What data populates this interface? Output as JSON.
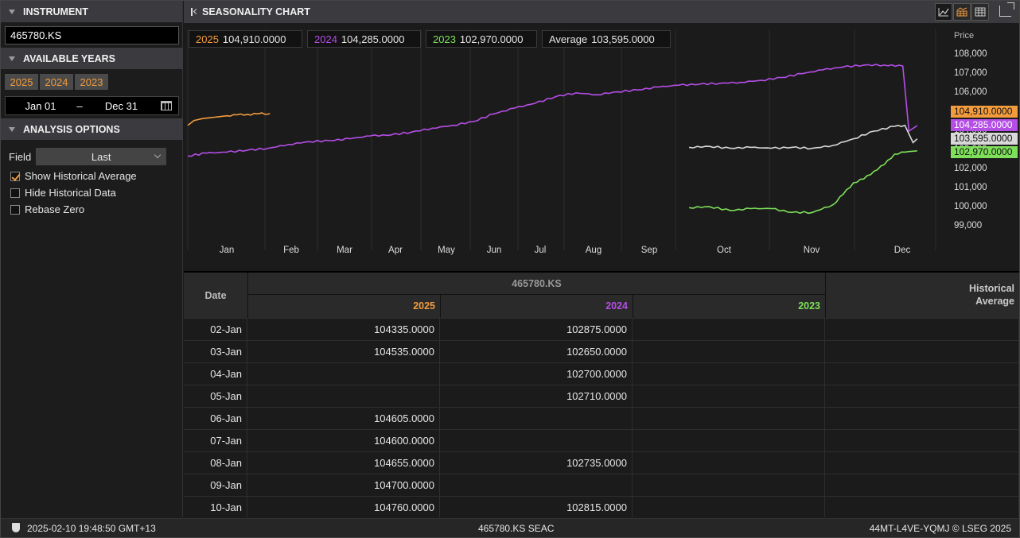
{
  "left_panel": {
    "instrument": {
      "header": "INSTRUMENT",
      "value": "465780.KS"
    },
    "available_years": {
      "header": "AVAILABLE YEARS",
      "years": [
        "2025",
        "2024",
        "2023"
      ]
    },
    "date_range": {
      "start": "Jan 01",
      "separator": "–",
      "end": "Dec 31"
    },
    "analysis_options": {
      "header": "ANALYSIS OPTIONS",
      "field_label": "Field",
      "field_value": "Last",
      "checkboxes": [
        {
          "label": "Show Historical Average",
          "checked": true
        },
        {
          "label": "Hide Historical Data",
          "checked": false
        },
        {
          "label": "Rebase Zero",
          "checked": false
        }
      ]
    }
  },
  "chart_header": {
    "title": "SEASONALITY CHART"
  },
  "colors": {
    "y2025": "#f39c3d",
    "y2024": "#b44ee6",
    "y2023": "#7ee05a",
    "average": "#d8d8d8"
  },
  "legend": [
    {
      "year": "2025",
      "value": "104,910.0000"
    },
    {
      "year": "2024",
      "value": "104,285.0000"
    },
    {
      "year": "2023",
      "value": "102,970.0000"
    },
    {
      "year": "Average",
      "value": "103,595.0000"
    }
  ],
  "price_tags": {
    "y2025": "104,910.0000",
    "y2024": "104,285.0000",
    "average": "103,595.0000",
    "y2023": "102,970.0000"
  },
  "chart_data": {
    "type": "line",
    "ylabel": "Price",
    "ylim": [
      98600,
      108400
    ],
    "yticks": [
      "108,000",
      "107,000",
      "106,000",
      "105,000",
      "104,000",
      "103,000",
      "102,000",
      "101,000",
      "100,000",
      "99,000"
    ],
    "xticks": [
      "Jan",
      "Feb",
      "Mar",
      "Apr",
      "May",
      "Jun",
      "Jul",
      "Aug",
      "Sep",
      "Oct",
      "Nov",
      "Dec"
    ],
    "series": [
      {
        "name": "2025",
        "x": [
          1,
          4,
          8,
          12,
          16,
          20,
          25,
          30,
          35,
          41
        ],
        "y": [
          104300,
          104550,
          104650,
          104700,
          104750,
          104800,
          104850,
          104870,
          104900,
          104910
        ]
      },
      {
        "name": "2024",
        "x": [
          1,
          10,
          20,
          30,
          40,
          50,
          60,
          70,
          80,
          90,
          100,
          110,
          120,
          130,
          140,
          150,
          160,
          170,
          180,
          190,
          200,
          210,
          220,
          230,
          240,
          250,
          260,
          270,
          280,
          290,
          300,
          310,
          320,
          330,
          340,
          349,
          352,
          356
        ],
        "y": [
          102700,
          102850,
          102900,
          103000,
          103100,
          103300,
          103450,
          103500,
          103600,
          103750,
          103800,
          103950,
          104150,
          104300,
          104500,
          104900,
          105200,
          105450,
          105800,
          106000,
          105900,
          106050,
          106150,
          106300,
          106400,
          106450,
          106500,
          106550,
          106650,
          106800,
          107000,
          107200,
          107350,
          107450,
          107450,
          107400,
          104000,
          104285
        ]
      },
      {
        "name": "Average",
        "x": [
          245,
          255,
          265,
          275,
          285,
          295,
          305,
          315,
          325,
          335,
          345,
          350,
          354,
          356
        ],
        "y": [
          103150,
          103200,
          103100,
          103150,
          103100,
          103150,
          103100,
          103250,
          103600,
          104000,
          104250,
          104300,
          103400,
          103595
        ]
      },
      {
        "name": "2023",
        "x": [
          245,
          255,
          265,
          275,
          285,
          295,
          305,
          315,
          320,
          325,
          330,
          335,
          340,
          345,
          350,
          356
        ],
        "y": [
          100000,
          100050,
          99850,
          99950,
          99950,
          99750,
          99750,
          100150,
          100700,
          101300,
          101500,
          101900,
          102250,
          102800,
          102900,
          102970
        ]
      }
    ]
  },
  "table": {
    "date_header": "Date",
    "instrument_header": "465780.KS",
    "year_headers": [
      "2025",
      "2024",
      "2023"
    ],
    "avg_header_line1": "Historical",
    "avg_header_line2": "Average",
    "rows": [
      {
        "date": "02-Jan",
        "y2025": "104335.0000",
        "y2024": "102875.0000",
        "y2023": "",
        "avg": ""
      },
      {
        "date": "03-Jan",
        "y2025": "104535.0000",
        "y2024": "102650.0000",
        "y2023": "",
        "avg": ""
      },
      {
        "date": "04-Jan",
        "y2025": "",
        "y2024": "102700.0000",
        "y2023": "",
        "avg": ""
      },
      {
        "date": "05-Jan",
        "y2025": "",
        "y2024": "102710.0000",
        "y2023": "",
        "avg": ""
      },
      {
        "date": "06-Jan",
        "y2025": "104605.0000",
        "y2024": "",
        "y2023": "",
        "avg": ""
      },
      {
        "date": "07-Jan",
        "y2025": "104600.0000",
        "y2024": "",
        "y2023": "",
        "avg": ""
      },
      {
        "date": "08-Jan",
        "y2025": "104655.0000",
        "y2024": "102735.0000",
        "y2023": "",
        "avg": ""
      },
      {
        "date": "09-Jan",
        "y2025": "104700.0000",
        "y2024": "",
        "y2023": "",
        "avg": ""
      },
      {
        "date": "10-Jan",
        "y2025": "104760.0000",
        "y2024": "102815.0000",
        "y2023": "",
        "avg": ""
      }
    ]
  },
  "status_bar": {
    "timestamp": "2025-02-10 19:48:50 GMT+13",
    "center": "465780.KS SEAC",
    "right": "44MT-L4VE-YQMJ  © LSEG 2025"
  }
}
